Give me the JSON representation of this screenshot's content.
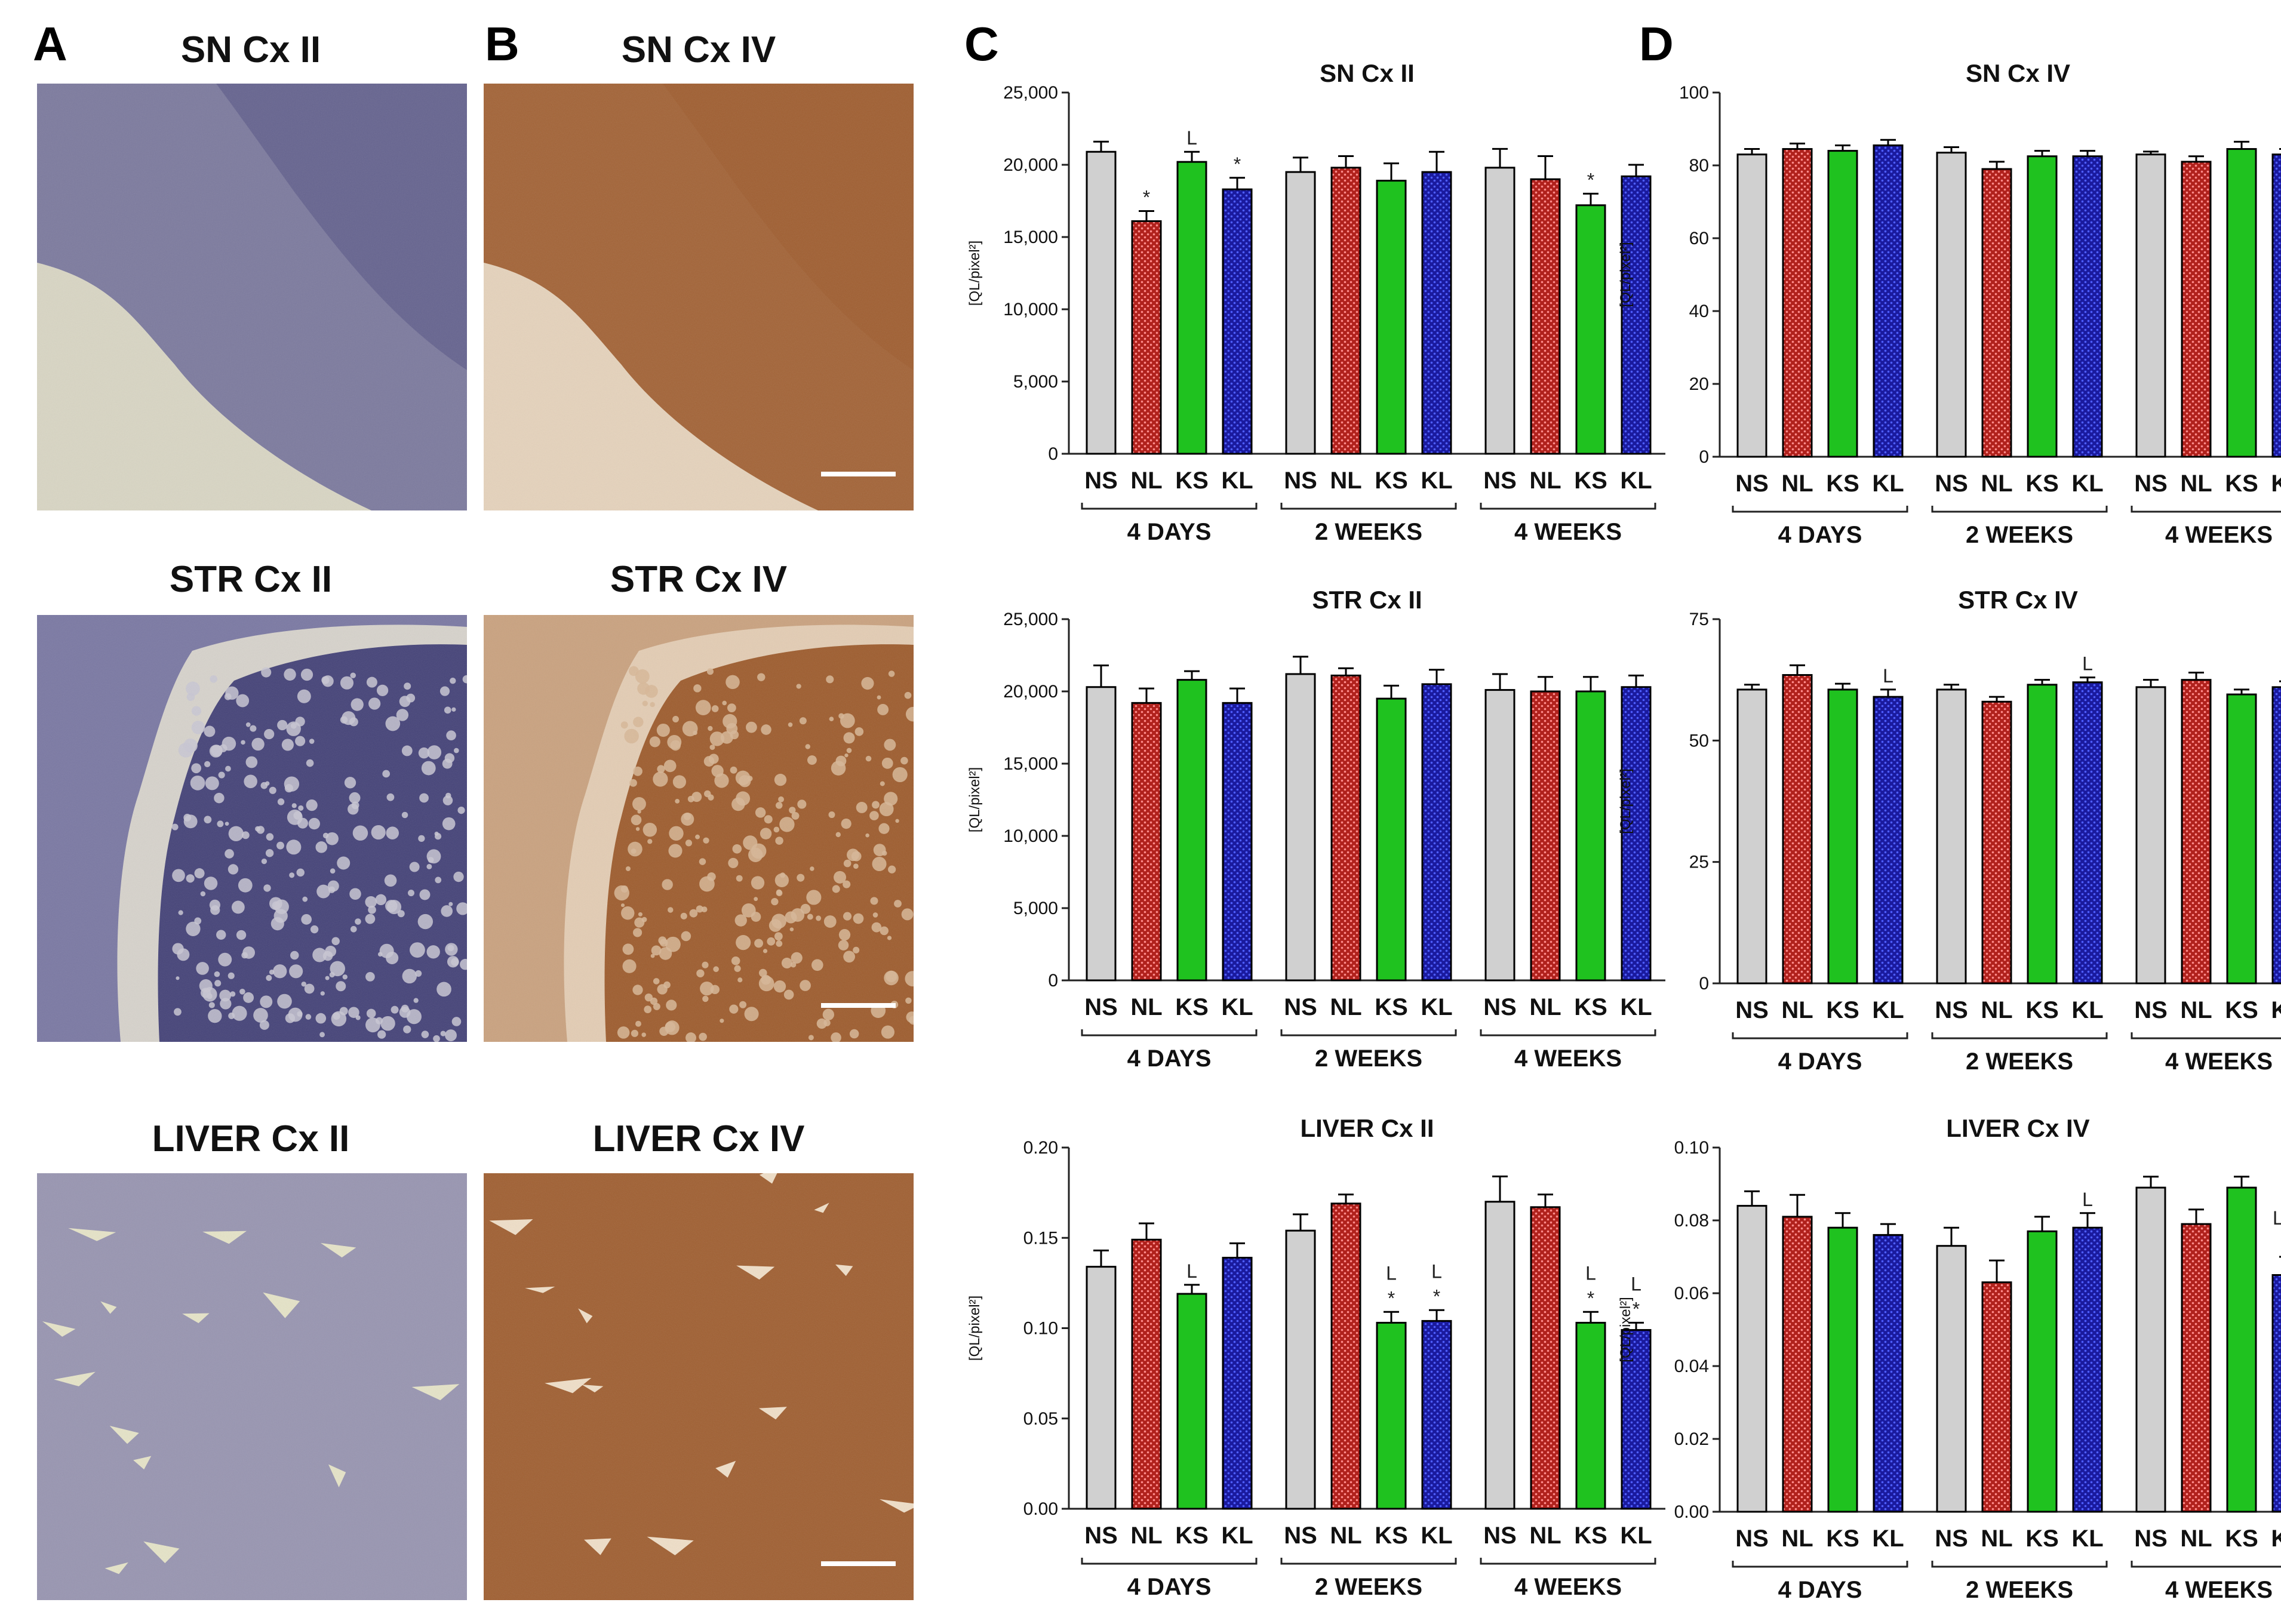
{
  "panel_letters": [
    "A",
    "B",
    "C",
    "D"
  ],
  "micrographs": [
    {
      "title": "SN Cx II",
      "stain": "nissl",
      "region": "sn"
    },
    {
      "title": "SN Cx IV",
      "stain": "ihc",
      "region": "sn"
    },
    {
      "title": "STR Cx II",
      "stain": "nissl",
      "region": "str"
    },
    {
      "title": "STR Cx IV",
      "stain": "ihc",
      "region": "str"
    },
    {
      "title": "LIVER Cx II",
      "stain": "nissl",
      "region": "liver"
    },
    {
      "title": "LIVER Cx IV",
      "stain": "ihc",
      "region": "liver"
    }
  ],
  "colors": {
    "NS": "#d0d0d0",
    "NL": "#b0211c",
    "KS": "#1fc21f",
    "KL": "#1a1a9e",
    "nissl_bg": "#c9c7d3",
    "nissl_dark": "#3c3a73",
    "ihc_bg": "#d8b796",
    "ihc_dark": "#9a5526"
  },
  "chart_data": [
    {
      "type": "bar",
      "title": "SN Cx II",
      "ylabel": "[QL/pixel²]",
      "ylim": [
        0,
        25000
      ],
      "yticks": [
        "0",
        "5,000",
        "10,000",
        "15,000",
        "20,000",
        "25,000"
      ],
      "categories": [
        "NS",
        "NL",
        "KS",
        "KL",
        "NS",
        "NL",
        "KS",
        "KL",
        "NS",
        "NL",
        "KS",
        "KL"
      ],
      "groups": [
        "4 DAYS",
        "2 WEEKS",
        "4 WEEKS"
      ],
      "values": [
        20900,
        16100,
        20200,
        18300,
        19500,
        19800,
        18900,
        19500,
        19800,
        19000,
        17200,
        19200
      ],
      "errors": [
        700,
        700,
        700,
        800,
        1000,
        800,
        1200,
        1400,
        1300,
        1600,
        800,
        800
      ],
      "annotations": [
        {
          "bar": 1,
          "lines": [
            "*"
          ]
        },
        {
          "bar": 2,
          "lines": [
            "L"
          ]
        },
        {
          "bar": 3,
          "lines": [
            "*"
          ]
        },
        {
          "bar": 10,
          "lines": [
            "*"
          ]
        }
      ]
    },
    {
      "type": "bar",
      "title": "SN Cx IV",
      "ylabel": "[QL/pixel²]",
      "ylim": [
        0,
        100
      ],
      "yticks": [
        "0",
        "20",
        "40",
        "60",
        "80",
        "100"
      ],
      "categories": [
        "NS",
        "NL",
        "KS",
        "KL",
        "NS",
        "NL",
        "KS",
        "KL",
        "NS",
        "NL",
        "KS",
        "KL"
      ],
      "groups": [
        "4 DAYS",
        "2 WEEKS",
        "4 WEEKS"
      ],
      "values": [
        83,
        84.5,
        84,
        85.5,
        83.5,
        79,
        82.5,
        82.5,
        83,
        81,
        84.5,
        83
      ],
      "errors": [
        1.5,
        1.5,
        1.5,
        1.5,
        1.5,
        2,
        1.5,
        1.5,
        0.8,
        1.5,
        2,
        1.5
      ],
      "annotations": []
    },
    {
      "type": "bar",
      "title": "STR Cx II",
      "ylabel": "[QL/pixel²]",
      "ylim": [
        0,
        25000
      ],
      "yticks": [
        "0",
        "5,000",
        "10,000",
        "15,000",
        "20,000",
        "25,000"
      ],
      "categories": [
        "NS",
        "NL",
        "KS",
        "KL",
        "NS",
        "NL",
        "KS",
        "KL",
        "NS",
        "NL",
        "KS",
        "KL"
      ],
      "groups": [
        "4 DAYS",
        "2 WEEKS",
        "4 WEEKS"
      ],
      "values": [
        20300,
        19200,
        20800,
        19200,
        21200,
        21100,
        19500,
        20500,
        20100,
        20000,
        20000,
        20300
      ],
      "errors": [
        1500,
        1000,
        600,
        1000,
        1200,
        500,
        900,
        1000,
        1100,
        1000,
        1000,
        800
      ],
      "annotations": []
    },
    {
      "type": "bar",
      "title": "STR Cx IV",
      "ylabel": "[QL/pixel²]",
      "ylim": [
        0,
        75
      ],
      "yticks": [
        "0",
        "25",
        "50",
        "75"
      ],
      "categories": [
        "NS",
        "NL",
        "KS",
        "KL",
        "NS",
        "NL",
        "KS",
        "KL",
        "NS",
        "NL",
        "KS",
        "KL"
      ],
      "groups": [
        "4 DAYS",
        "2 WEEKS",
        "4 WEEKS"
      ],
      "values": [
        60.5,
        63.5,
        60.5,
        59,
        60.5,
        58,
        61.5,
        62,
        61,
        62.5,
        59.5,
        61
      ],
      "errors": [
        1,
        2,
        1.2,
        1.5,
        1,
        1,
        1,
        1,
        1.5,
        1.5,
        1,
        1.2
      ],
      "annotations": [
        {
          "bar": 3,
          "lines": [
            "L"
          ]
        },
        {
          "bar": 7,
          "lines": [
            "L"
          ]
        }
      ]
    },
    {
      "type": "bar",
      "title": "LIVER Cx II",
      "ylabel": "[QL/pixel²]",
      "ylim": [
        0,
        0.2
      ],
      "yticks": [
        "0.00",
        "0.05",
        "0.10",
        "0.15",
        "0.20"
      ],
      "categories": [
        "NS",
        "NL",
        "KS",
        "KL",
        "NS",
        "NL",
        "KS",
        "KL",
        "NS",
        "NL",
        "KS",
        "KL"
      ],
      "groups": [
        "4 DAYS",
        "2 WEEKS",
        "4 WEEKS"
      ],
      "values": [
        0.134,
        0.149,
        0.119,
        0.139,
        0.154,
        0.169,
        0.103,
        0.104,
        0.17,
        0.167,
        0.103,
        0.099
      ],
      "errors": [
        0.009,
        0.009,
        0.005,
        0.008,
        0.009,
        0.005,
        0.006,
        0.006,
        0.014,
        0.007,
        0.006,
        0.004
      ],
      "annotations": [
        {
          "bar": 2,
          "lines": [
            "L"
          ]
        },
        {
          "bar": 6,
          "lines": [
            "L",
            "*"
          ]
        },
        {
          "bar": 7,
          "lines": [
            "L",
            "*"
          ]
        },
        {
          "bar": 10,
          "lines": [
            "L",
            "*"
          ]
        },
        {
          "bar": 11,
          "lines": [
            "L",
            "*"
          ]
        }
      ]
    },
    {
      "type": "bar",
      "title": "LIVER Cx IV",
      "ylabel": "[QL/pixel²]",
      "ylim": [
        0,
        0.1
      ],
      "yticks": [
        "0.00",
        "0.02",
        "0.04",
        "0.06",
        "0.08",
        "0.10"
      ],
      "categories": [
        "NS",
        "NL",
        "KS",
        "KL",
        "NS",
        "NL",
        "KS",
        "KL",
        "NS",
        "NL",
        "KS",
        "KL"
      ],
      "groups": [
        "4 DAYS",
        "2 WEEKS",
        "4 WEEKS"
      ],
      "values": [
        0.084,
        0.081,
        0.078,
        0.076,
        0.073,
        0.063,
        0.077,
        0.078,
        0.089,
        0.079,
        0.089,
        0.065
      ],
      "errors": [
        0.004,
        0.006,
        0.004,
        0.003,
        0.005,
        0.006,
        0.004,
        0.004,
        0.003,
        0.004,
        0.003,
        0.005
      ],
      "annotations": [
        {
          "bar": 7,
          "lines": [
            "L"
          ]
        },
        {
          "bar": 11,
          "lines": [
            "L,K",
            "*"
          ]
        }
      ]
    }
  ]
}
